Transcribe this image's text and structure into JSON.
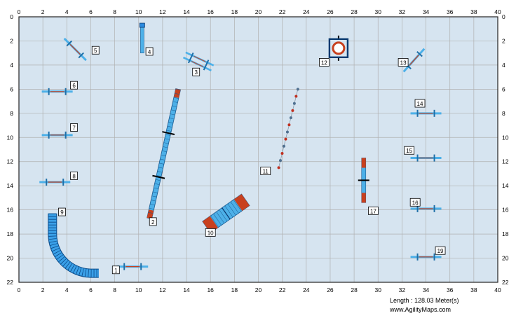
{
  "course": {
    "length_label": "Length : 128.03 Meter(s)",
    "site": "www.AgilityMaps.com",
    "colors": {
      "field": "#d6e4f0",
      "grid": "#b0b0b0",
      "border": "#222222",
      "bar": "#4db0e8",
      "wing": "#1e6fa8",
      "contact": "#c8401e",
      "tunnel": "#3aa0e8",
      "weave_red": "#c03020",
      "weave_blue": "#507090"
    },
    "axis": {
      "x_max": 40,
      "y_max": 22,
      "step": 2,
      "x_ticks": [
        "0",
        "2",
        "4",
        "6",
        "8",
        "10",
        "12",
        "14",
        "16",
        "18",
        "20",
        "22",
        "24",
        "26",
        "28",
        "30",
        "32",
        "34",
        "36",
        "38",
        "40"
      ],
      "y_ticks": [
        "0",
        "2",
        "4",
        "6",
        "8",
        "10",
        "12",
        "14",
        "16",
        "18",
        "20",
        "22"
      ]
    },
    "jumps": [
      {
        "number": "1",
        "x": 9.5,
        "y": 20.7,
        "angle": 0
      },
      {
        "number": "5",
        "x": 4.7,
        "y": 2.7,
        "angle": 45
      },
      {
        "number": "6",
        "x": 3.2,
        "y": 6.2,
        "angle": 0
      },
      {
        "number": "7",
        "x": 3.2,
        "y": 9.8,
        "angle": 0
      },
      {
        "number": "8",
        "x": 3.0,
        "y": 13.7,
        "angle": 0
      },
      {
        "number": "13",
        "x": 33.0,
        "y": 3.6,
        "angle": -48
      },
      {
        "number": "14",
        "x": 34.0,
        "y": 8.0,
        "angle": 0
      },
      {
        "number": "15",
        "x": 34.0,
        "y": 11.7,
        "angle": 0
      },
      {
        "number": "16",
        "x": 34.0,
        "y": 15.9,
        "angle": 0
      },
      {
        "number": "19",
        "x": 34.0,
        "y": 19.9,
        "angle": 0
      }
    ],
    "double_jump": {
      "number": "3",
      "x": 15.0,
      "y": 3.7,
      "angle": 25
    },
    "tire": {
      "number": "12",
      "x": 26.7,
      "y": 2.6
    },
    "dogwalk": {
      "number": "2",
      "x1": 10.9,
      "y1": 16.7,
      "x2": 13.3,
      "y2": 6.0
    },
    "seesaw": {
      "number": "4",
      "x": 10.3,
      "y1": 0.7,
      "y2": 3.0
    },
    "vertical_plank": {
      "number": "17",
      "x": 28.8,
      "y1": 11.7,
      "y2": 15.4
    },
    "aframe": {
      "number": "10",
      "x": 17.3,
      "y": 16.3,
      "angle": -35
    },
    "weave": {
      "number": "11",
      "x1": 21.7,
      "y1": 12.5,
      "x2": 23.3,
      "y2": 6.0,
      "poles": 12
    },
    "tunnel": {
      "number": "9",
      "x0": 2.8,
      "y0": 16.3
    },
    "labels": {
      "1": {
        "x": 8.1,
        "y": 21.0
      },
      "2": {
        "x": 11.2,
        "y": 17.0
      },
      "3": {
        "x": 14.8,
        "y": 4.6
      },
      "4": {
        "x": 10.9,
        "y": 2.9
      },
      "5": {
        "x": 6.4,
        "y": 2.8
      },
      "6": {
        "x": 4.6,
        "y": 5.7
      },
      "7": {
        "x": 4.6,
        "y": 9.2
      },
      "8": {
        "x": 4.6,
        "y": 13.2
      },
      "9": {
        "x": 3.6,
        "y": 16.2
      },
      "10": {
        "x": 16.0,
        "y": 17.9
      },
      "11": {
        "x": 20.6,
        "y": 12.8
      },
      "12": {
        "x": 25.5,
        "y": 3.8
      },
      "13": {
        "x": 32.1,
        "y": 3.8
      },
      "14": {
        "x": 33.5,
        "y": 7.2
      },
      "15": {
        "x": 32.6,
        "y": 11.1
      },
      "16": {
        "x": 33.1,
        "y": 15.4
      },
      "17": {
        "x": 29.6,
        "y": 16.1
      },
      "18": {
        "x": 35.2,
        "y": 15.4
      },
      "19": {
        "x": 35.2,
        "y": 19.4
      }
    }
  }
}
